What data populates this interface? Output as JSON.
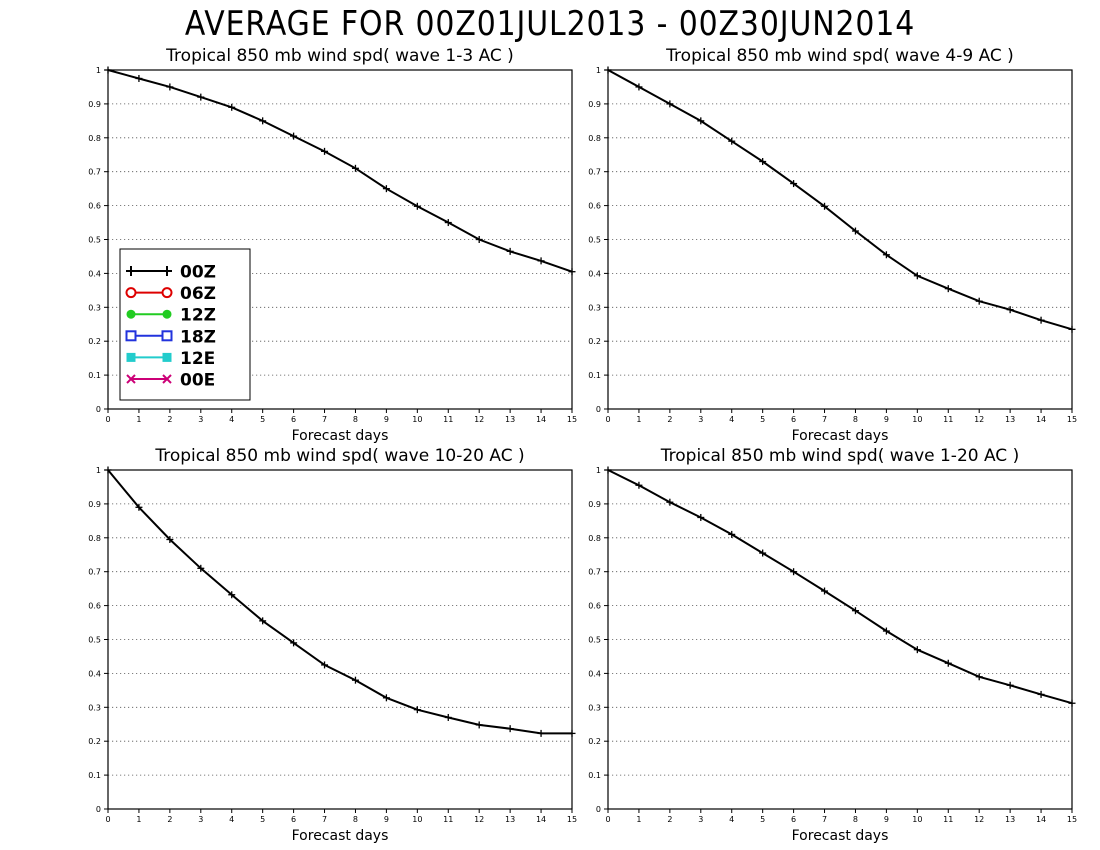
{
  "title": "AVERAGE FOR 00Z01JUL2013 - 00Z30JUN2014",
  "chart_data": [
    {
      "type": "line",
      "title": "Tropical 850 mb wind spd( wave 1-3 AC )",
      "xlabel": "Forecast days",
      "xlim": [
        0,
        15
      ],
      "ylim": [
        0,
        1
      ],
      "x": [
        0,
        1,
        2,
        3,
        4,
        5,
        6,
        7,
        8,
        9,
        10,
        11,
        12,
        13,
        14,
        15
      ],
      "series": [
        {
          "name": "00Z",
          "color": "#000000",
          "values": [
            1.0,
            0.975,
            0.95,
            0.92,
            0.89,
            0.85,
            0.805,
            0.76,
            0.71,
            0.65,
            0.598,
            0.55,
            0.5,
            0.465,
            0.437,
            0.405
          ]
        }
      ],
      "grid": "horizontal dotted",
      "legend_position": "left-middle"
    },
    {
      "type": "line",
      "title": "Tropical 850 mb wind spd( wave 4-9 AC )",
      "xlabel": "Forecast days",
      "xlim": [
        0,
        15
      ],
      "ylim": [
        0,
        1
      ],
      "x": [
        0,
        1,
        2,
        3,
        4,
        5,
        6,
        7,
        8,
        9,
        10,
        11,
        12,
        13,
        14,
        15
      ],
      "series": [
        {
          "name": "00Z",
          "color": "#000000",
          "values": [
            1.0,
            0.95,
            0.9,
            0.85,
            0.79,
            0.73,
            0.665,
            0.598,
            0.525,
            0.455,
            0.393,
            0.355,
            0.318,
            0.293,
            0.262,
            0.235
          ]
        }
      ],
      "grid": "horizontal dotted"
    },
    {
      "type": "line",
      "title": "Tropical 850 mb wind spd( wave 10-20 AC )",
      "xlabel": "Forecast days",
      "xlim": [
        0,
        15
      ],
      "ylim": [
        0,
        1
      ],
      "x": [
        0,
        1,
        2,
        3,
        4,
        5,
        6,
        7,
        8,
        9,
        10,
        11,
        12,
        13,
        14,
        15
      ],
      "series": [
        {
          "name": "00Z",
          "color": "#000000",
          "values": [
            1.0,
            0.89,
            0.795,
            0.71,
            0.632,
            0.555,
            0.49,
            0.425,
            0.38,
            0.328,
            0.293,
            0.27,
            0.248,
            0.237,
            0.223,
            0.223
          ]
        }
      ],
      "grid": "horizontal dotted"
    },
    {
      "type": "line",
      "title": "Tropical 850 mb wind spd( wave 1-20 AC )",
      "xlabel": "Forecast days",
      "xlim": [
        0,
        15
      ],
      "ylim": [
        0,
        1
      ],
      "x": [
        0,
        1,
        2,
        3,
        4,
        5,
        6,
        7,
        8,
        9,
        10,
        11,
        12,
        13,
        14,
        15
      ],
      "series": [
        {
          "name": "00Z",
          "color": "#000000",
          "values": [
            1.0,
            0.955,
            0.905,
            0.86,
            0.81,
            0.755,
            0.7,
            0.643,
            0.585,
            0.525,
            0.47,
            0.43,
            0.39,
            0.365,
            0.338,
            0.312
          ]
        }
      ],
      "grid": "horizontal dotted"
    }
  ],
  "legend": [
    {
      "label": "00Z",
      "color": "#000000",
      "marker": "plus"
    },
    {
      "label": "06Z",
      "color": "#dd0000",
      "marker": "open-circle"
    },
    {
      "label": "12Z",
      "color": "#22cc22",
      "marker": "filled-circle"
    },
    {
      "label": "18Z",
      "color": "#2233dd",
      "marker": "open-square"
    },
    {
      "label": "12E",
      "color": "#22cccc",
      "marker": "filled-square"
    },
    {
      "label": "00E",
      "color": "#cc0077",
      "marker": "x"
    }
  ],
  "yticks": [
    "0",
    "0.1",
    "0.2",
    "0.3",
    "0.4",
    "0.5",
    "0.6",
    "0.7",
    "0.8",
    "0.9",
    "1"
  ],
  "xticks": [
    "0",
    "1",
    "2",
    "3",
    "4",
    "5",
    "6",
    "7",
    "8",
    "9",
    "10",
    "11",
    "12",
    "13",
    "14",
    "15"
  ]
}
